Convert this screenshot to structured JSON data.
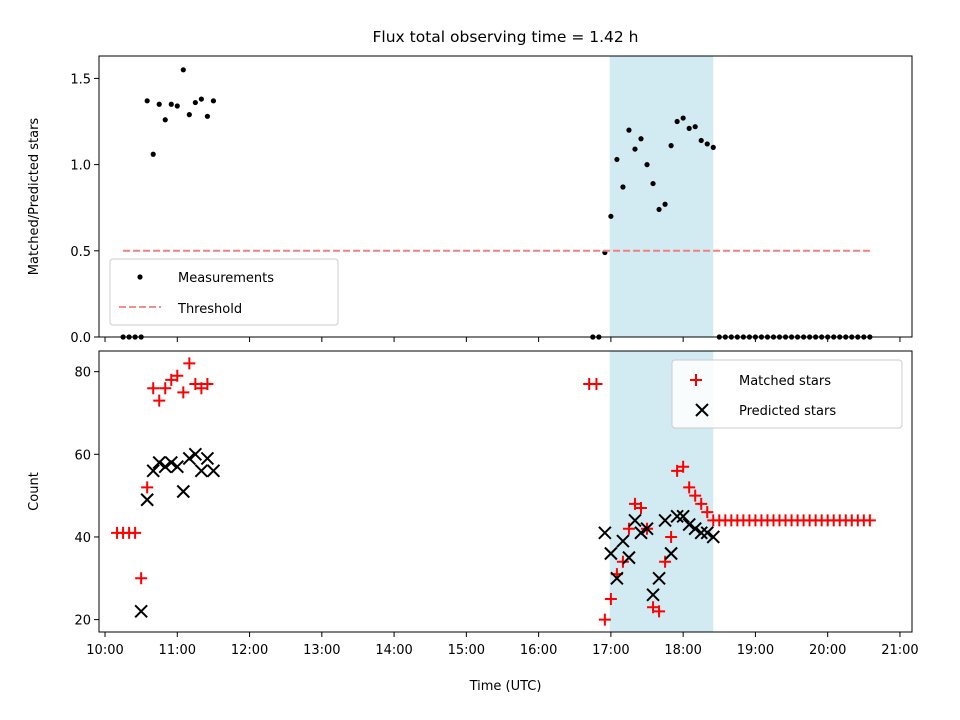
{
  "chart_data": [
    {
      "type": "scatter",
      "title": "Flux total observing time = 1.42 h",
      "xlabel": "",
      "ylabel": "Matched/Predicted stars",
      "x_axis": "time",
      "xlim": [
        "10:00",
        "21:00"
      ],
      "ylim": [
        0,
        1.63
      ],
      "yticks": [
        "0.0",
        "0.5",
        "1.0",
        "1.5"
      ],
      "ytick_values": [
        0,
        0.5,
        1.0,
        1.5
      ],
      "grid": false,
      "legend": "bottom-left",
      "shaded_span": {
        "x_start": "16:59",
        "x_end": "18:25",
        "color": "#add8e6"
      },
      "series": [
        {
          "name": "Measurements",
          "marker": "dot",
          "color": "#000000",
          "points": [
            {
              "x": "10:15",
              "y": 0
            },
            {
              "x": "10:20",
              "y": 0
            },
            {
              "x": "10:25",
              "y": 0
            },
            {
              "x": "10:30",
              "y": 0
            },
            {
              "x": "10:35",
              "y": 1.37
            },
            {
              "x": "10:40",
              "y": 1.06
            },
            {
              "x": "10:45",
              "y": 1.35
            },
            {
              "x": "10:50",
              "y": 1.26
            },
            {
              "x": "10:55",
              "y": 1.35
            },
            {
              "x": "11:00",
              "y": 1.34
            },
            {
              "x": "11:05",
              "y": 1.55
            },
            {
              "x": "11:10",
              "y": 1.29
            },
            {
              "x": "11:15",
              "y": 1.36
            },
            {
              "x": "11:20",
              "y": 1.38
            },
            {
              "x": "11:25",
              "y": 1.28
            },
            {
              "x": "11:30",
              "y": 1.37
            },
            {
              "x": "16:45",
              "y": 0
            },
            {
              "x": "16:50",
              "y": 0
            },
            {
              "x": "16:55",
              "y": 0.49
            },
            {
              "x": "17:00",
              "y": 0.7
            },
            {
              "x": "17:05",
              "y": 1.03
            },
            {
              "x": "17:10",
              "y": 0.87
            },
            {
              "x": "17:15",
              "y": 1.2
            },
            {
              "x": "17:20",
              "y": 1.09
            },
            {
              "x": "17:25",
              "y": 1.15
            },
            {
              "x": "17:30",
              "y": 1.0
            },
            {
              "x": "17:35",
              "y": 0.89
            },
            {
              "x": "17:40",
              "y": 0.74
            },
            {
              "x": "17:45",
              "y": 0.77
            },
            {
              "x": "17:50",
              "y": 1.11
            },
            {
              "x": "17:55",
              "y": 1.25
            },
            {
              "x": "18:00",
              "y": 1.27
            },
            {
              "x": "18:05",
              "y": 1.21
            },
            {
              "x": "18:10",
              "y": 1.22
            },
            {
              "x": "18:15",
              "y": 1.14
            },
            {
              "x": "18:20",
              "y": 1.12
            },
            {
              "x": "18:25",
              "y": 1.1
            },
            {
              "x": "18:30",
              "y": 0
            },
            {
              "x": "18:35",
              "y": 0
            },
            {
              "x": "18:40",
              "y": 0
            },
            {
              "x": "18:45",
              "y": 0
            },
            {
              "x": "18:50",
              "y": 0
            },
            {
              "x": "18:55",
              "y": 0
            },
            {
              "x": "19:00",
              "y": 0
            },
            {
              "x": "19:05",
              "y": 0
            },
            {
              "x": "19:10",
              "y": 0
            },
            {
              "x": "19:15",
              "y": 0
            },
            {
              "x": "19:20",
              "y": 0
            },
            {
              "x": "19:25",
              "y": 0
            },
            {
              "x": "19:30",
              "y": 0
            },
            {
              "x": "19:35",
              "y": 0
            },
            {
              "x": "19:40",
              "y": 0
            },
            {
              "x": "19:45",
              "y": 0
            },
            {
              "x": "19:50",
              "y": 0
            },
            {
              "x": "19:55",
              "y": 0
            },
            {
              "x": "20:00",
              "y": 0
            },
            {
              "x": "20:05",
              "y": 0
            },
            {
              "x": "20:10",
              "y": 0
            },
            {
              "x": "20:15",
              "y": 0
            },
            {
              "x": "20:20",
              "y": 0
            },
            {
              "x": "20:25",
              "y": 0
            },
            {
              "x": "20:30",
              "y": 0
            },
            {
              "x": "20:35",
              "y": 0
            }
          ]
        },
        {
          "name": "Threshold",
          "marker": "dashed-line",
          "color": "#f08080",
          "points": [
            {
              "x": "10:15",
              "y": 0.5
            },
            {
              "x": "20:35",
              "y": 0.5
            }
          ]
        }
      ]
    },
    {
      "type": "scatter",
      "title": "",
      "xlabel": "Time (UTC)",
      "ylabel": "Count",
      "x_axis": "time",
      "xlim": [
        "10:00",
        "21:00"
      ],
      "ylim": [
        17,
        85
      ],
      "xticks": [
        "10:00",
        "11:00",
        "12:00",
        "13:00",
        "14:00",
        "15:00",
        "16:00",
        "17:00",
        "18:00",
        "19:00",
        "20:00",
        "21:00"
      ],
      "yticks": [
        "20",
        "40",
        "60",
        "80"
      ],
      "ytick_values": [
        20,
        40,
        60,
        80
      ],
      "grid": false,
      "legend": "top-right",
      "shaded_span": {
        "x_start": "16:59",
        "x_end": "18:25",
        "color": "#add8e6"
      },
      "series": [
        {
          "name": "Matched stars",
          "marker": "plus",
          "color": "#ff0000",
          "points": [
            {
              "x": "10:10",
              "y": 41
            },
            {
              "x": "10:15",
              "y": 41
            },
            {
              "x": "10:20",
              "y": 41
            },
            {
              "x": "10:25",
              "y": 41
            },
            {
              "x": "10:30",
              "y": 30
            },
            {
              "x": "10:35",
              "y": 52
            },
            {
              "x": "10:40",
              "y": 76
            },
            {
              "x": "10:45",
              "y": 73
            },
            {
              "x": "10:50",
              "y": 76
            },
            {
              "x": "10:55",
              "y": 78
            },
            {
              "x": "11:00",
              "y": 79
            },
            {
              "x": "11:05",
              "y": 75
            },
            {
              "x": "11:10",
              "y": 82
            },
            {
              "x": "11:15",
              "y": 77
            },
            {
              "x": "11:20",
              "y": 76
            },
            {
              "x": "11:25",
              "y": 77
            },
            {
              "x": "16:42",
              "y": 77
            },
            {
              "x": "16:48",
              "y": 77
            },
            {
              "x": "16:55",
              "y": 20
            },
            {
              "x": "17:00",
              "y": 25
            },
            {
              "x": "17:05",
              "y": 31
            },
            {
              "x": "17:10",
              "y": 34
            },
            {
              "x": "17:15",
              "y": 42
            },
            {
              "x": "17:20",
              "y": 48
            },
            {
              "x": "17:25",
              "y": 47
            },
            {
              "x": "17:30",
              "y": 42
            },
            {
              "x": "17:35",
              "y": 23
            },
            {
              "x": "17:40",
              "y": 22
            },
            {
              "x": "17:45",
              "y": 34
            },
            {
              "x": "17:50",
              "y": 40
            },
            {
              "x": "17:55",
              "y": 56
            },
            {
              "x": "18:00",
              "y": 57
            },
            {
              "x": "18:05",
              "y": 52
            },
            {
              "x": "18:10",
              "y": 50
            },
            {
              "x": "18:15",
              "y": 48
            },
            {
              "x": "18:20",
              "y": 46
            },
            {
              "x": "18:25",
              "y": 44
            },
            {
              "x": "18:30",
              "y": 44
            },
            {
              "x": "18:35",
              "y": 44
            },
            {
              "x": "18:40",
              "y": 44
            },
            {
              "x": "18:45",
              "y": 44
            },
            {
              "x": "18:50",
              "y": 44
            },
            {
              "x": "18:55",
              "y": 44
            },
            {
              "x": "19:00",
              "y": 44
            },
            {
              "x": "19:05",
              "y": 44
            },
            {
              "x": "19:10",
              "y": 44
            },
            {
              "x": "19:15",
              "y": 44
            },
            {
              "x": "19:20",
              "y": 44
            },
            {
              "x": "19:25",
              "y": 44
            },
            {
              "x": "19:30",
              "y": 44
            },
            {
              "x": "19:35",
              "y": 44
            },
            {
              "x": "19:40",
              "y": 44
            },
            {
              "x": "19:45",
              "y": 44
            },
            {
              "x": "19:50",
              "y": 44
            },
            {
              "x": "19:55",
              "y": 44
            },
            {
              "x": "20:00",
              "y": 44
            },
            {
              "x": "20:05",
              "y": 44
            },
            {
              "x": "20:10",
              "y": 44
            },
            {
              "x": "20:15",
              "y": 44
            },
            {
              "x": "20:20",
              "y": 44
            },
            {
              "x": "20:25",
              "y": 44
            },
            {
              "x": "20:30",
              "y": 44
            },
            {
              "x": "20:35",
              "y": 44
            }
          ]
        },
        {
          "name": "Predicted stars",
          "marker": "x",
          "color": "#000000",
          "points": [
            {
              "x": "10:30",
              "y": 22
            },
            {
              "x": "10:35",
              "y": 49
            },
            {
              "x": "10:40",
              "y": 56
            },
            {
              "x": "10:45",
              "y": 58
            },
            {
              "x": "10:50",
              "y": 57
            },
            {
              "x": "10:55",
              "y": 58
            },
            {
              "x": "11:05",
              "y": 51
            },
            {
              "x": "11:00",
              "y": 57
            },
            {
              "x": "11:10",
              "y": 59
            },
            {
              "x": "11:15",
              "y": 60
            },
            {
              "x": "11:20",
              "y": 56
            },
            {
              "x": "11:25",
              "y": 59
            },
            {
              "x": "11:30",
              "y": 56
            },
            {
              "x": "16:55",
              "y": 41
            },
            {
              "x": "17:00",
              "y": 36
            },
            {
              "x": "17:05",
              "y": 30
            },
            {
              "x": "17:10",
              "y": 39
            },
            {
              "x": "17:15",
              "y": 35
            },
            {
              "x": "17:20",
              "y": 44
            },
            {
              "x": "17:25",
              "y": 41
            },
            {
              "x": "17:30",
              "y": 42
            },
            {
              "x": "17:35",
              "y": 26
            },
            {
              "x": "17:40",
              "y": 30
            },
            {
              "x": "17:45",
              "y": 44
            },
            {
              "x": "17:50",
              "y": 36
            },
            {
              "x": "17:55",
              "y": 45
            },
            {
              "x": "18:00",
              "y": 45
            },
            {
              "x": "18:05",
              "y": 43
            },
            {
              "x": "18:10",
              "y": 42
            },
            {
              "x": "18:15",
              "y": 41
            },
            {
              "x": "18:20",
              "y": 41
            },
            {
              "x": "18:25",
              "y": 40
            }
          ]
        }
      ]
    }
  ]
}
